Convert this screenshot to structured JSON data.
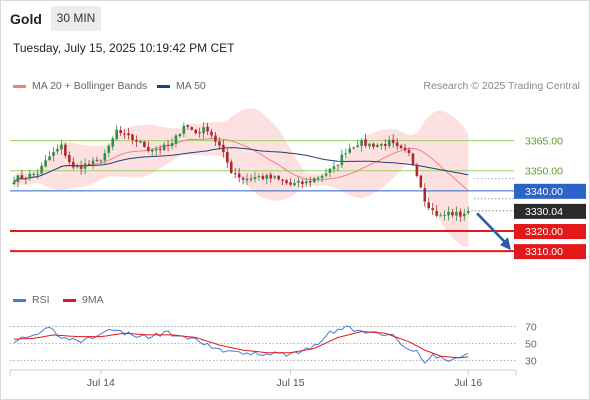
{
  "header": {
    "symbol": "Gold",
    "timeframe": "30 MIN",
    "datetime": "Tuesday, July 15, 2025 10:19:42 PM CET",
    "credit": "Research © 2025 Trading Central"
  },
  "colors": {
    "up": "#2f8f46",
    "down": "#b0282d",
    "ma20": "#f08080",
    "band_fill": "#fde1e1",
    "ma50": "#1e3f7a",
    "resistance_green": "#9bcf6e",
    "resistance_text": "#5a9e2a",
    "pivot_blue": "#2b63c9",
    "support_red": "#e31919",
    "rsi": "#4a78d4",
    "rsi_ma": "#e31919",
    "arrow": "#2a5ca8"
  },
  "chart_data": [
    {
      "type": "candlestick",
      "title": "",
      "legend": [
        {
          "name": "MA 20 + Bollinger Bands",
          "color": "#f08080"
        },
        {
          "name": "MA 50",
          "color": "#1e3f7a"
        }
      ],
      "ylim": [
        3300.6,
        3385.2
      ],
      "x_ticks": [
        {
          "label": "Jul 14",
          "index": 22
        },
        {
          "label": "Jul 15",
          "index": 70
        },
        {
          "label": "Jul 16",
          "index": 115
        }
      ],
      "levels": [
        {
          "value": 3365.0,
          "label": "3365.00",
          "kind": "resistance"
        },
        {
          "value": 3350.0,
          "label": "3350.00",
          "kind": "resistance"
        },
        {
          "value": 3340.0,
          "label": "3340.00",
          "kind": "pivot"
        },
        {
          "value": 3320.0,
          "label": "3320.00",
          "kind": "support"
        },
        {
          "value": 3310.0,
          "label": "3310.00",
          "kind": "support"
        }
      ],
      "last_price": {
        "value": 3330.04,
        "label": "3330.04"
      },
      "forecast_arrow": {
        "from": 3328.8,
        "to": 3310.5
      },
      "close_keypoints": [
        [
          0,
          3346
        ],
        [
          3,
          3347
        ],
        [
          6,
          3349
        ],
        [
          9,
          3357
        ],
        [
          12,
          3362
        ],
        [
          15,
          3351
        ],
        [
          18,
          3353
        ],
        [
          21,
          3354
        ],
        [
          24,
          3361
        ],
        [
          26,
          3370
        ],
        [
          28,
          3367
        ],
        [
          31,
          3365
        ],
        [
          34,
          3361
        ],
        [
          37,
          3361
        ],
        [
          40,
          3363
        ],
        [
          43,
          3373
        ],
        [
          46,
          3369
        ],
        [
          49,
          3371
        ],
        [
          52,
          3362
        ],
        [
          55,
          3350
        ],
        [
          58,
          3346
        ],
        [
          62,
          3347
        ],
        [
          66,
          3346
        ],
        [
          70,
          3343
        ],
        [
          74,
          3344
        ],
        [
          78,
          3348
        ],
        [
          81,
          3351
        ],
        [
          84,
          3360
        ],
        [
          87,
          3364
        ],
        [
          90,
          3363
        ],
        [
          93,
          3363
        ],
        [
          95,
          3364
        ],
        [
          97,
          3361
        ],
        [
          100,
          3358
        ],
        [
          102,
          3349
        ],
        [
          104,
          3336
        ],
        [
          106,
          3330
        ],
        [
          108,
          3327
        ],
        [
          110,
          3329
        ],
        [
          113,
          3328
        ],
        [
          115,
          3330
        ]
      ]
    },
    {
      "type": "line",
      "legend": [
        {
          "name": "RSI",
          "color": "#4a78d4"
        },
        {
          "name": "9MA",
          "color": "#e31919"
        }
      ],
      "ylim": [
        28,
        80
      ],
      "y_ticks": [
        "70",
        "50",
        "30"
      ],
      "rsi_keypoints": [
        [
          0,
          54
        ],
        [
          3,
          55
        ],
        [
          6,
          58
        ],
        [
          9,
          70
        ],
        [
          11,
          60
        ],
        [
          14,
          56
        ],
        [
          17,
          52
        ],
        [
          20,
          58
        ],
        [
          23,
          66
        ],
        [
          26,
          64
        ],
        [
          29,
          62
        ],
        [
          32,
          57
        ],
        [
          35,
          58
        ],
        [
          38,
          63
        ],
        [
          41,
          60
        ],
        [
          44,
          54
        ],
        [
          47,
          53
        ],
        [
          50,
          45
        ],
        [
          53,
          41
        ],
        [
          56,
          38
        ],
        [
          60,
          39
        ],
        [
          64,
          38
        ],
        [
          68,
          37
        ],
        [
          72,
          39
        ],
        [
          76,
          48
        ],
        [
          80,
          62
        ],
        [
          84,
          70
        ],
        [
          88,
          62
        ],
        [
          92,
          64
        ],
        [
          96,
          58
        ],
        [
          99,
          48
        ],
        [
          102,
          40
        ],
        [
          104,
          28
        ],
        [
          106,
          35
        ],
        [
          108,
          32
        ],
        [
          111,
          30
        ],
        [
          113,
          33
        ],
        [
          115,
          38
        ]
      ],
      "ma9_keypoints": [
        [
          0,
          55
        ],
        [
          5,
          56
        ],
        [
          10,
          60
        ],
        [
          16,
          58
        ],
        [
          22,
          58
        ],
        [
          28,
          62
        ],
        [
          34,
          60
        ],
        [
          40,
          60
        ],
        [
          46,
          57
        ],
        [
          52,
          48
        ],
        [
          58,
          42
        ],
        [
          64,
          39
        ],
        [
          70,
          39
        ],
        [
          76,
          44
        ],
        [
          82,
          57
        ],
        [
          88,
          64
        ],
        [
          94,
          62
        ],
        [
          100,
          52
        ],
        [
          104,
          42
        ],
        [
          108,
          35
        ],
        [
          112,
          33
        ],
        [
          115,
          34
        ]
      ]
    }
  ]
}
